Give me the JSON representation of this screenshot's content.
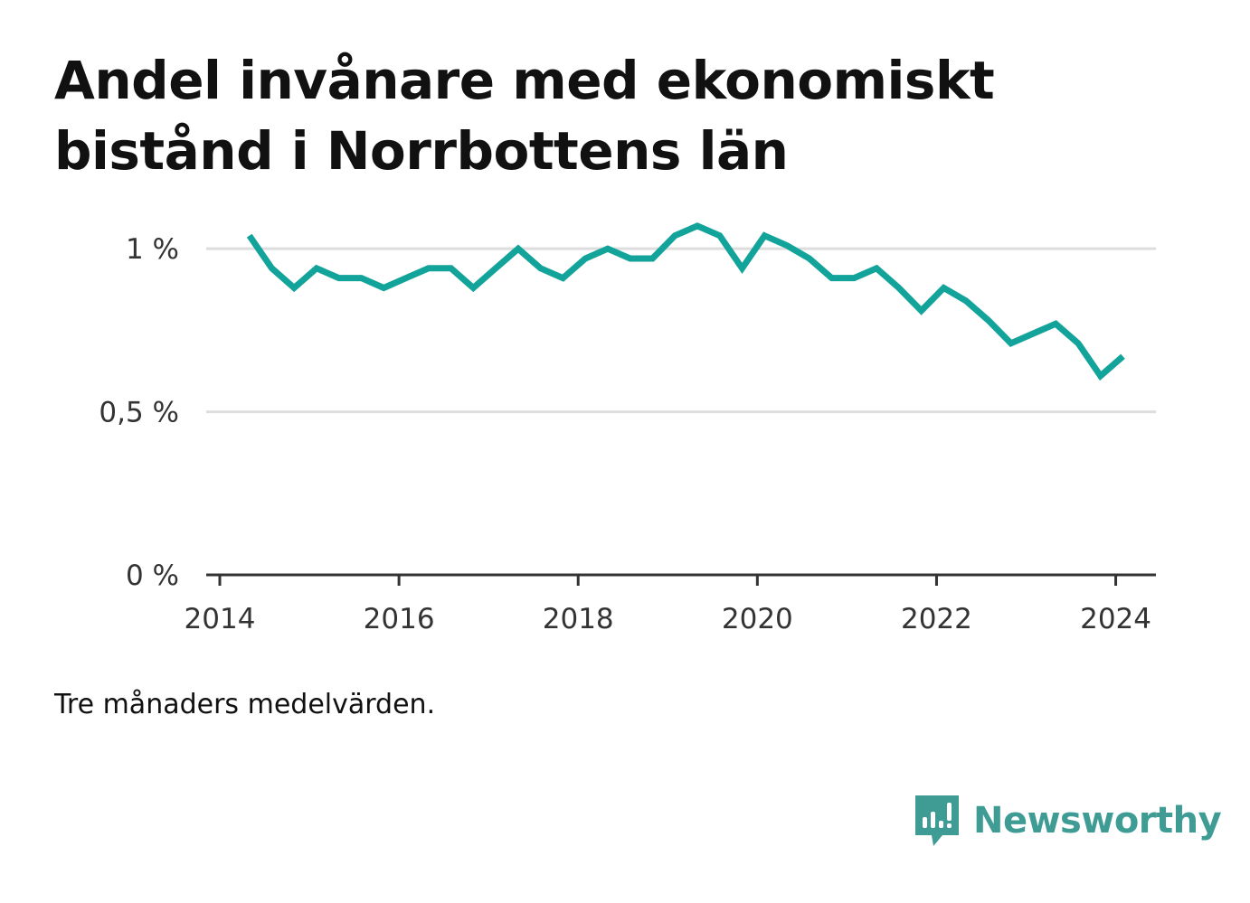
{
  "title": "Andel invånare med ekonomiskt bistånd i Norrbottens län",
  "note": "Tre månaders medelvärden.",
  "brand": {
    "name": "Newsworthy",
    "icon": "newsworthy-logo-icon",
    "color": "#3f9c95"
  },
  "colors": {
    "line": "#12a39a",
    "grid": "#dddddd",
    "axis": "#333333",
    "text": "#333333"
  },
  "chart_data": {
    "type": "line",
    "title": "Andel invånare med ekonomiskt bistånd i Norrbottens län",
    "xlabel": "",
    "ylabel": "",
    "x_ticks": [
      "2014",
      "2016",
      "2018",
      "2020",
      "2022",
      "2024"
    ],
    "y_ticks": [
      "0 %",
      "0,5 %",
      "1 %"
    ],
    "y_tick_values": [
      0,
      0.5,
      1.0
    ],
    "xlim": [
      2014,
      2024.6
    ],
    "ylim": [
      0,
      1.2
    ],
    "grid": true,
    "series": [
      {
        "x": [
          2014.33,
          2014.58,
          2014.83,
          2015.08,
          2015.33,
          2015.58,
          2015.83,
          2016.08,
          2016.33,
          2016.58,
          2016.83,
          2017.08,
          2017.33,
          2017.58,
          2017.83,
          2018.08,
          2018.33,
          2018.58,
          2018.83,
          2019.08,
          2019.33,
          2019.58,
          2019.83,
          2020.08,
          2020.33,
          2020.58,
          2020.83,
          2021.08,
          2021.33,
          2021.58,
          2021.83,
          2022.08,
          2022.33,
          2022.58,
          2022.83,
          2023.08,
          2023.33,
          2023.58,
          2023.83,
          2024.08
        ],
        "y": [
          1.04,
          0.94,
          0.88,
          0.94,
          0.91,
          0.91,
          0.88,
          0.91,
          0.94,
          0.94,
          0.88,
          0.94,
          1.0,
          0.94,
          0.91,
          0.97,
          1.0,
          0.97,
          0.97,
          1.04,
          1.07,
          1.04,
          0.94,
          1.04,
          1.01,
          0.97,
          0.91,
          0.91,
          0.94,
          0.88,
          0.81,
          0.88,
          0.84,
          0.78,
          0.71,
          0.74,
          0.77,
          0.71,
          0.61,
          0.67
        ]
      }
    ]
  }
}
